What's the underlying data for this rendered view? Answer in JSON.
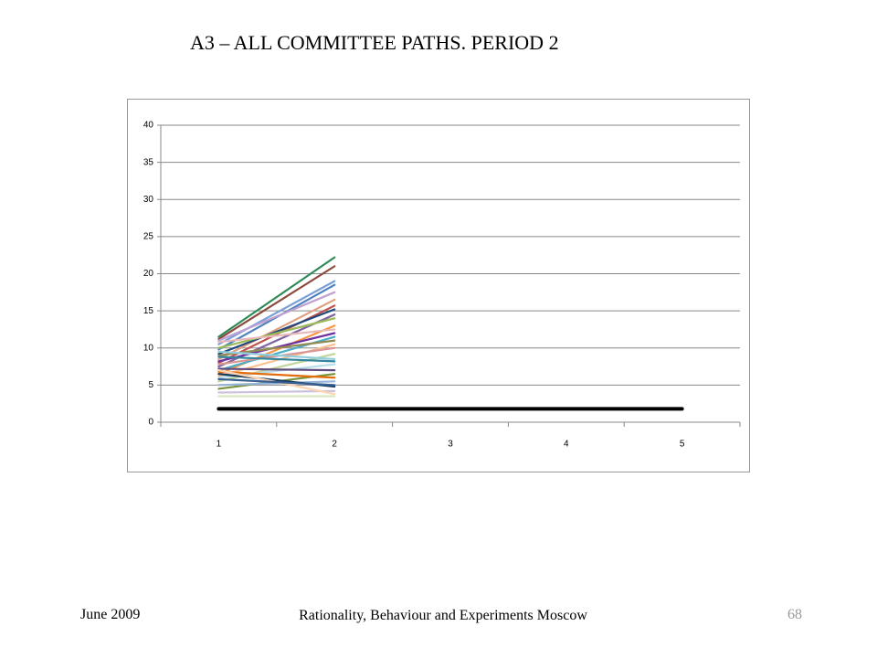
{
  "title": "A3 – ALL COMMITTEE PATHS.  PERIOD 2",
  "footer": {
    "date": "June 2009",
    "center": "Rationality, Behaviour and Experiments Moscow",
    "page": "68"
  },
  "chart_data": {
    "type": "line",
    "categories": [
      "1",
      "2",
      "3",
      "4",
      "5"
    ],
    "ylim": [
      0,
      40
    ],
    "yticks": [
      0,
      5,
      10,
      15,
      20,
      25,
      30,
      35,
      40
    ],
    "grid": true,
    "series": [
      {
        "color": "#2e8b57",
        "values": [
          11.5,
          22.2,
          null,
          null,
          null
        ]
      },
      {
        "color": "#8b4a3c",
        "values": [
          11.2,
          21,
          null,
          null,
          null
        ]
      },
      {
        "color": "#7b9fd8",
        "values": [
          10.5,
          19,
          null,
          null,
          null
        ]
      },
      {
        "color": "#4f81bd",
        "values": [
          9.8,
          18.5,
          null,
          null,
          null
        ]
      },
      {
        "color": "#c0a0d0",
        "values": [
          11,
          17.5,
          null,
          null,
          null
        ]
      },
      {
        "color": "#e0a080",
        "values": [
          8.5,
          16.5,
          null,
          null,
          null
        ]
      },
      {
        "color": "#c0504d",
        "values": [
          8,
          15.7,
          null,
          null,
          null
        ]
      },
      {
        "color": "#1f497d",
        "values": [
          9.2,
          15.2,
          null,
          null,
          null
        ]
      },
      {
        "color": "#8064a2",
        "values": [
          7.5,
          14.5,
          null,
          null,
          null
        ]
      },
      {
        "color": "#9bbb59",
        "values": [
          10,
          14,
          null,
          null,
          null
        ]
      },
      {
        "color": "#f79646",
        "values": [
          6.5,
          13,
          null,
          null,
          null
        ]
      },
      {
        "color": "#7030a0",
        "values": [
          8.2,
          12,
          null,
          null,
          null
        ]
      },
      {
        "color": "#4bacc6",
        "values": [
          7,
          11.5,
          null,
          null,
          null
        ]
      },
      {
        "color": "#948a54",
        "values": [
          9,
          11,
          null,
          null,
          null
        ]
      },
      {
        "color": "#fac090",
        "values": [
          6.2,
          10.5,
          null,
          null,
          null
        ]
      },
      {
        "color": "#d99694",
        "values": [
          7.8,
          10,
          null,
          null,
          null
        ]
      },
      {
        "color": "#c3d69b",
        "values": [
          5.5,
          9.2,
          null,
          null,
          null
        ]
      },
      {
        "color": "#31859c",
        "values": [
          8.8,
          8.2,
          null,
          null,
          null
        ]
      },
      {
        "color": "#b7dee8",
        "values": [
          6,
          7.8,
          null,
          null,
          null
        ]
      },
      {
        "color": "#604a7b",
        "values": [
          7.2,
          7,
          null,
          null,
          null
        ]
      },
      {
        "color": "#77933c",
        "values": [
          4.5,
          6.5,
          null,
          null,
          null
        ]
      },
      {
        "color": "#e46c0a",
        "values": [
          6.8,
          6,
          null,
          null,
          null
        ]
      },
      {
        "color": "#95b3d7",
        "values": [
          5,
          5.5,
          null,
          null,
          null
        ]
      },
      {
        "color": "#17375e",
        "values": [
          6.5,
          4.8,
          null,
          null,
          null
        ]
      },
      {
        "color": "#ccc1da",
        "values": [
          4,
          4.2,
          null,
          null,
          null
        ]
      },
      {
        "color": "#fcd5b4",
        "values": [
          7,
          3.8,
          null,
          null,
          null
        ]
      },
      {
        "color": "#d7e4bd",
        "values": [
          3.5,
          3.5,
          null,
          null,
          null
        ]
      },
      {
        "color": "#376092",
        "values": [
          5.8,
          5,
          null,
          null,
          null
        ]
      },
      {
        "color": "#e6b9b8",
        "values": [
          10.8,
          12.5,
          null,
          null,
          null
        ]
      },
      {
        "color": "#92cddc",
        "values": [
          9.5,
          8.5,
          null,
          null,
          null
        ]
      },
      {
        "color": "#000000",
        "width": 4,
        "values": [
          1.8,
          1.8,
          1.8,
          1.8,
          1.8
        ]
      }
    ]
  }
}
